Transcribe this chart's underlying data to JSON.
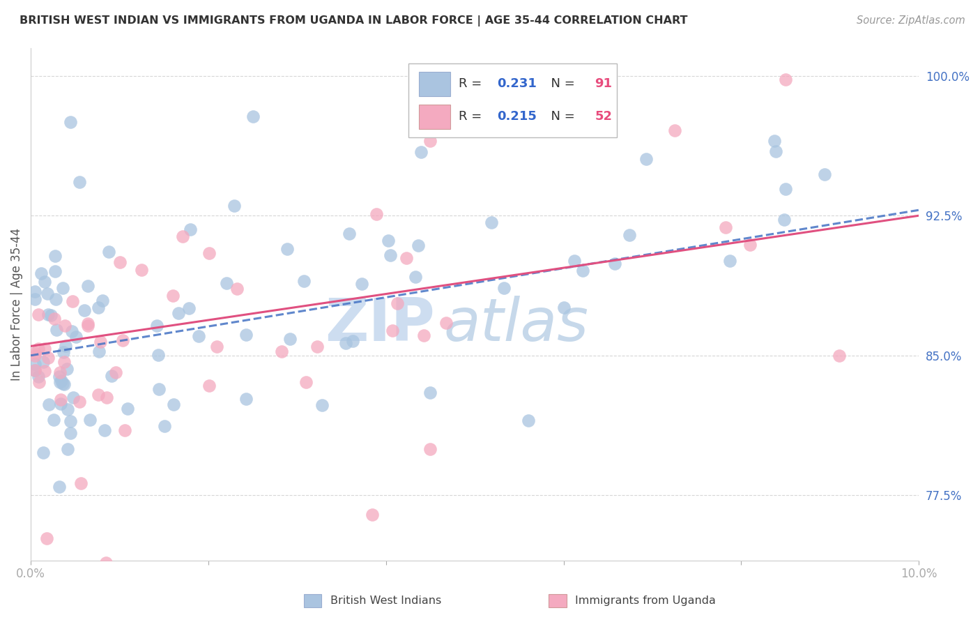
{
  "title": "BRITISH WEST INDIAN VS IMMIGRANTS FROM UGANDA IN LABOR FORCE | AGE 35-44 CORRELATION CHART",
  "source": "Source: ZipAtlas.com",
  "ylabel": "In Labor Force | Age 35-44",
  "xlim": [
    0.0,
    10.0
  ],
  "ylim": [
    74.0,
    101.5
  ],
  "ytick_right": [
    77.5,
    85.0,
    92.5,
    100.0
  ],
  "ytick_right_labels": [
    "77.5%",
    "85.0%",
    "92.5%",
    "100.0%"
  ],
  "blue_scatter_color": "#a8c4e0",
  "pink_scatter_color": "#f4a8be",
  "blue_line_color": "#4472c4",
  "pink_line_color": "#e05080",
  "R_blue": 0.231,
  "N_blue": 91,
  "R_pink": 0.215,
  "N_pink": 52,
  "legend_label_blue": "British West Indians",
  "legend_label_pink": "Immigrants from Uganda",
  "bg_color": "#ffffff",
  "grid_color": "#cccccc",
  "title_color": "#333333",
  "axis_label_color": "#555555",
  "right_tick_color": "#4472c4",
  "watermark_zip_color": "#c8d8ec",
  "watermark_atlas_color": "#b0c8e4",
  "legend_blue_fill": "#aac4e0",
  "legend_pink_fill": "#f4aac0"
}
